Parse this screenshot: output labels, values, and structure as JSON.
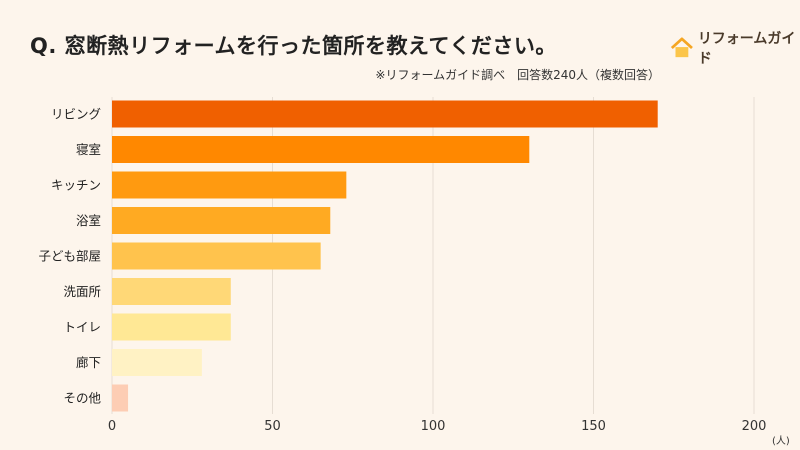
{
  "title": "Q. 窓断熱リフォームを行った箇所を教えてください。",
  "note": "※リフォームガイド調べ　回答数240人（複数回答）",
  "logo": {
    "text": "リフォームガイド",
    "icon": "house-icon",
    "color": "#f5a623"
  },
  "unit_label": "(人)",
  "chart_data": {
    "type": "bar",
    "orientation": "horizontal",
    "title": "Q. 窓断熱リフォームを行った箇所を教えてください。",
    "categories": [
      "リビング",
      "寝室",
      "キッチン",
      "浴室",
      "子ども部屋",
      "洗面所",
      "トイレ",
      "廊下",
      "その他"
    ],
    "values": [
      170,
      130,
      73,
      68,
      65,
      37,
      37,
      28,
      5
    ],
    "colors": [
      "#f06000",
      "#ff8800",
      "#ff9a10",
      "#ffaa22",
      "#ffc34d",
      "#ffd877",
      "#ffe895",
      "#fff2c4",
      "#fdcdb4"
    ],
    "xlim": [
      0,
      200
    ],
    "xticks": [
      0,
      50,
      100,
      150,
      200
    ],
    "xlabel": "(人)",
    "grid": true
  }
}
